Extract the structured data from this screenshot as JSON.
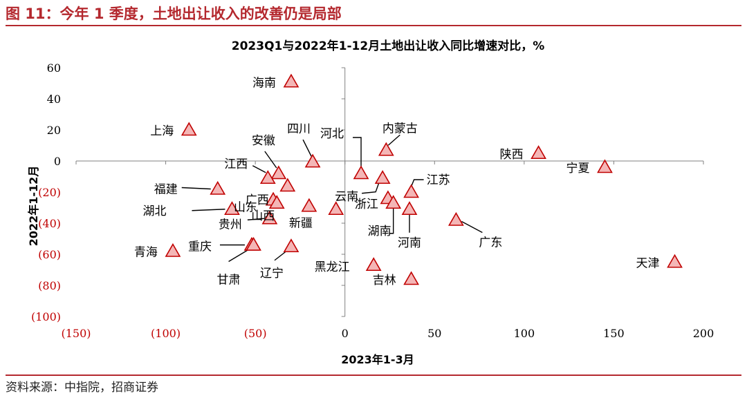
{
  "figure": {
    "label": "图 11：今年 1 季度，土地出让收入的改善仍是局部",
    "source": "资料来源：中指院，招商证券"
  },
  "colors": {
    "accent": "#b4282e",
    "marker_fill": "#f4b6b6",
    "marker_stroke": "#c00000",
    "negative_tick": "#c00000",
    "axis": "#808080"
  },
  "chart_data": {
    "type": "scatter",
    "title": "2023Q1与2022年1-12月土地出让收入同比增速对比，%",
    "xlabel": "2023年1-3月",
    "ylabel": "2022年1-12月",
    "xlim": [
      -150,
      200
    ],
    "ylim": [
      -100,
      60
    ],
    "xticks": [
      -150,
      -100,
      -50,
      0,
      50,
      100,
      150,
      200
    ],
    "yticks": [
      60,
      40,
      20,
      0,
      -20,
      -40,
      -60,
      -80,
      -100
    ],
    "xtick_labels": [
      "(150)",
      "(100)",
      "(50)",
      "0",
      "50",
      "100",
      "150",
      "200"
    ],
    "ytick_labels": [
      "60",
      "40",
      "20",
      "0",
      "(20)",
      "(40)",
      "(60)",
      "(80)",
      "(100)"
    ],
    "grid": false,
    "marker": "triangle",
    "points": [
      {
        "label": "海南",
        "x": -30,
        "y": 51
      },
      {
        "label": "上海",
        "x": -87,
        "y": 20
      },
      {
        "label": "安徽",
        "x": -37,
        "y": -8
      },
      {
        "label": "四川",
        "x": -18,
        "y": -0.5
      },
      {
        "label": "江西",
        "x": -43,
        "y": -11
      },
      {
        "label": "河北",
        "x": 9,
        "y": -8
      },
      {
        "label": "内蒙古",
        "x": 23,
        "y": 7
      },
      {
        "label": "陕西",
        "x": 108,
        "y": 5
      },
      {
        "label": "宁夏",
        "x": 145,
        "y": -4
      },
      {
        "label": "福建",
        "x": -71,
        "y": -18
      },
      {
        "label": "广西",
        "x": -32,
        "y": -16
      },
      {
        "label": "云南",
        "x": 21,
        "y": -11
      },
      {
        "label": "江苏",
        "x": 37,
        "y": -20
      },
      {
        "label": "山东",
        "x": -40,
        "y": -25
      },
      {
        "label": "山西",
        "x": -38,
        "y": -27
      },
      {
        "label": "湖北",
        "x": -63,
        "y": -31
      },
      {
        "label": "新疆",
        "x": -20,
        "y": -29
      },
      {
        "label": "贵州",
        "x": -42,
        "y": -37
      },
      {
        "label": "浙江",
        "x": 24,
        "y": -24
      },
      {
        "label": "湖南",
        "x": 27,
        "y": -27
      },
      {
        "label": "河南",
        "x": 36,
        "y": -31
      },
      {
        "label": "广东",
        "x": 62,
        "y": -38
      },
      {
        "label": "重庆",
        "x": -52,
        "y": -54
      },
      {
        "label": "青海",
        "x": -96,
        "y": -58
      },
      {
        "label": "辽宁",
        "x": -30,
        "y": -55
      },
      {
        "label": "甘肃",
        "x": -51,
        "y": -54
      },
      {
        "label": "黑龙江",
        "x": 16,
        "y": -67
      },
      {
        "label": "吉林",
        "x": 37,
        "y": -76
      },
      {
        "label": "天津",
        "x": 184,
        "y": -65
      },
      {
        "label": "新疆2",
        "x": -5,
        "y": -31
      }
    ]
  }
}
